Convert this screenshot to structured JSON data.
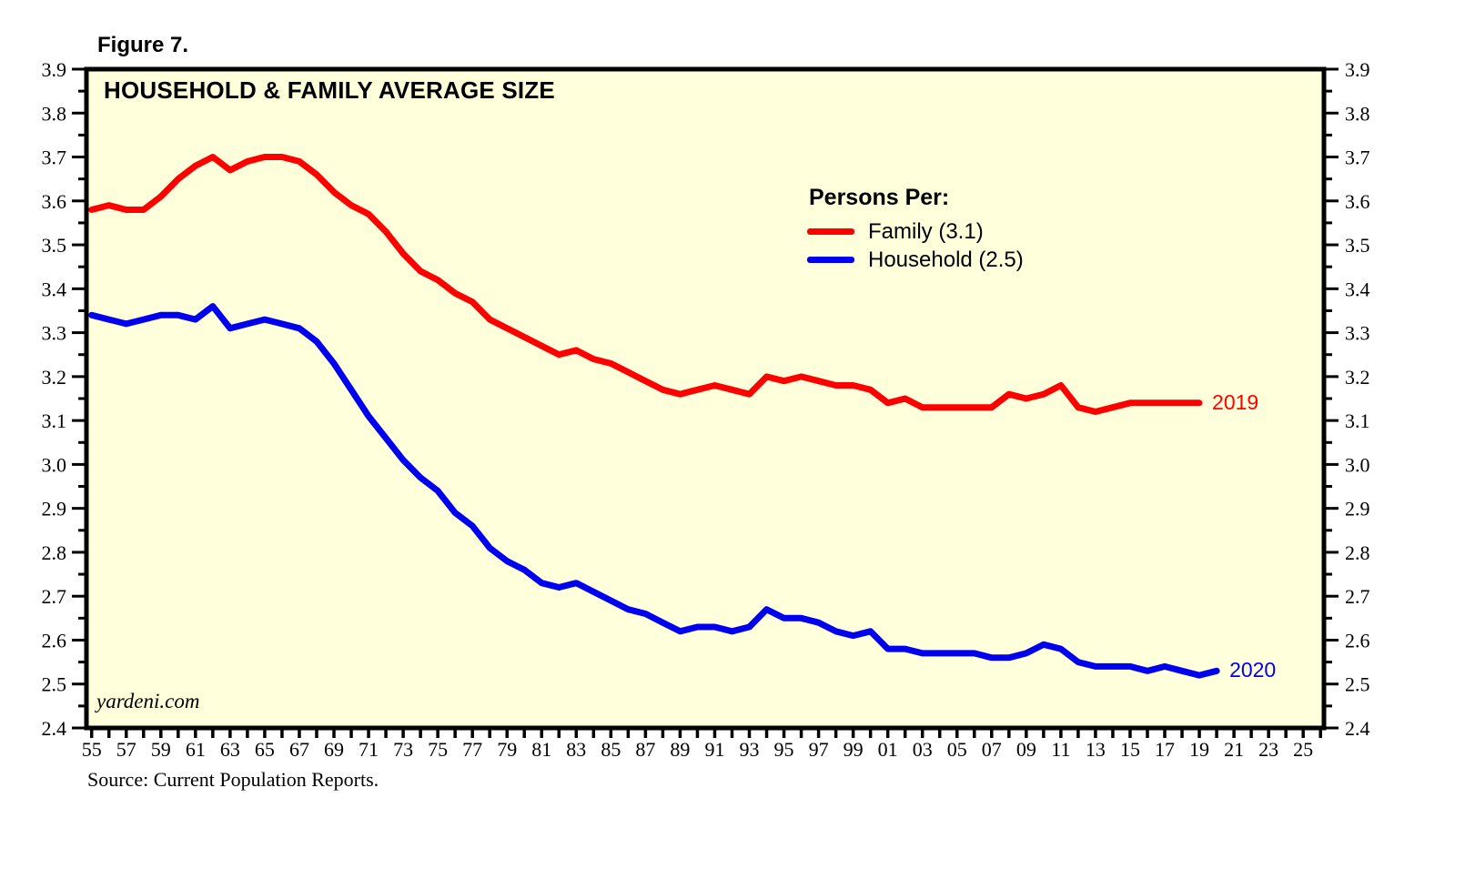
{
  "figure_label": "Figure 7.",
  "watermark": "yardeni.com",
  "source_note": "Source: Current Population Reports.",
  "legend": {
    "heading": "Persons Per:",
    "items": [
      {
        "label": "Family (3.1)",
        "color": "#FF0000"
      },
      {
        "label": "Household (2.5)",
        "color": "#0000F0"
      }
    ]
  },
  "colors": {
    "page_background": "#FFFFFF",
    "plot_background": "#FFFFDC",
    "axis": "#000000",
    "family_line": "#FF0000",
    "household_line": "#0000F0"
  },
  "chart_data": {
    "type": "line",
    "title": "HOUSEHOLD & FAMILY AVERAGE SIZE",
    "xlabel": "",
    "ylabel": "",
    "xlim": [
      1954.7,
      2026.2
    ],
    "ylim": [
      2.4,
      3.9
    ],
    "grid": false,
    "legend_position": "inside, upper center-right",
    "y_major_step": 0.1,
    "y_minor_step": 0.05,
    "y_tick_labels": [
      "3.9",
      "3.8",
      "3.7",
      "3.6",
      "3.5",
      "3.4",
      "3.3",
      "3.2",
      "3.1",
      "3.0",
      "2.9",
      "2.8",
      "2.7",
      "2.6",
      "2.5",
      "2.4"
    ],
    "y_axis_sides": "both",
    "x_tick_start_year": 1955,
    "x_tick_end_year": 2026,
    "x_tick_labels": [
      "55",
      "57",
      "59",
      "61",
      "63",
      "65",
      "67",
      "69",
      "71",
      "73",
      "75",
      "77",
      "79",
      "81",
      "83",
      "85",
      "87",
      "89",
      "91",
      "93",
      "95",
      "97",
      "99",
      "01",
      "03",
      "05",
      "07",
      "09",
      "11",
      "13",
      "15",
      "17",
      "19",
      "21",
      "23",
      "25"
    ],
    "series": [
      {
        "name": "Family",
        "legend_label": "Family (3.1)",
        "color": "#FF0000",
        "end_label": "2019",
        "start_year": 1955,
        "values": [
          3.58,
          3.59,
          3.58,
          3.58,
          3.61,
          3.65,
          3.68,
          3.7,
          3.67,
          3.69,
          3.7,
          3.7,
          3.69,
          3.66,
          3.62,
          3.59,
          3.57,
          3.53,
          3.48,
          3.44,
          3.42,
          3.39,
          3.37,
          3.33,
          3.31,
          3.29,
          3.27,
          3.25,
          3.26,
          3.24,
          3.23,
          3.21,
          3.19,
          3.17,
          3.16,
          3.17,
          3.18,
          3.17,
          3.16,
          3.2,
          3.19,
          3.2,
          3.19,
          3.18,
          3.18,
          3.17,
          3.14,
          3.15,
          3.13,
          3.13,
          3.13,
          3.13,
          3.13,
          3.16,
          3.15,
          3.16,
          3.18,
          3.13,
          3.12,
          3.13,
          3.14,
          3.14,
          3.14,
          3.14,
          3.14
        ]
      },
      {
        "name": "Household",
        "legend_label": "Household (2.5)",
        "color": "#0000F0",
        "end_label": "2020",
        "start_year": 1955,
        "values": [
          3.34,
          3.33,
          3.32,
          3.33,
          3.34,
          3.34,
          3.33,
          3.36,
          3.31,
          3.32,
          3.33,
          3.32,
          3.31,
          3.28,
          3.23,
          3.17,
          3.11,
          3.06,
          3.01,
          2.97,
          2.94,
          2.89,
          2.86,
          2.81,
          2.78,
          2.76,
          2.73,
          2.72,
          2.73,
          2.71,
          2.69,
          2.67,
          2.66,
          2.64,
          2.62,
          2.63,
          2.63,
          2.62,
          2.63,
          2.67,
          2.65,
          2.65,
          2.64,
          2.62,
          2.61,
          2.62,
          2.58,
          2.58,
          2.57,
          2.57,
          2.57,
          2.57,
          2.56,
          2.56,
          2.57,
          2.59,
          2.58,
          2.55,
          2.54,
          2.54,
          2.54,
          2.53,
          2.54,
          2.53,
          2.52,
          2.53
        ]
      }
    ]
  }
}
